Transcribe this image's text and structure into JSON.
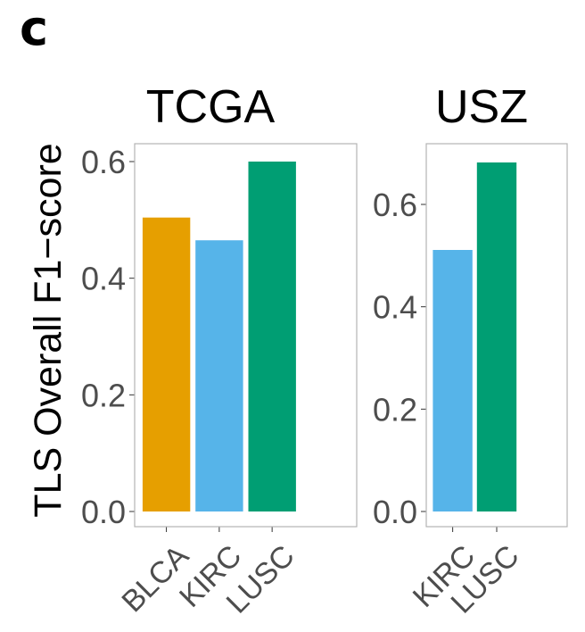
{
  "figure": {
    "panel_label": "c",
    "background": "#ffffff"
  },
  "chart_data": {
    "type": "bar",
    "ylabel": "TLS Overall F1−score",
    "xlabel": "",
    "colors": {
      "BLCA": "#E69F00",
      "KIRC": "#56B4E9",
      "LUSC": "#009E73"
    },
    "facets": [
      {
        "title": "TCGA",
        "categories": [
          "BLCA",
          "KIRC",
          "LUSC"
        ],
        "values": [
          0.504,
          0.465,
          0.6
        ],
        "ylim": [
          0,
          0.63
        ],
        "yticks": [
          0.0,
          0.2,
          0.4,
          0.6
        ],
        "ytick_labels": [
          "0.0",
          "0.2",
          "0.4",
          "0.6"
        ]
      },
      {
        "title": "USZ",
        "categories": [
          "KIRC",
          "LUSC"
        ],
        "values": [
          0.511,
          0.682
        ],
        "ylim": [
          0,
          0.716
        ],
        "yticks": [
          0.0,
          0.2,
          0.4,
          0.6
        ],
        "ytick_labels": [
          "0.0",
          "0.2",
          "0.4",
          "0.6"
        ]
      }
    ],
    "grid": false,
    "legend": "none"
  }
}
